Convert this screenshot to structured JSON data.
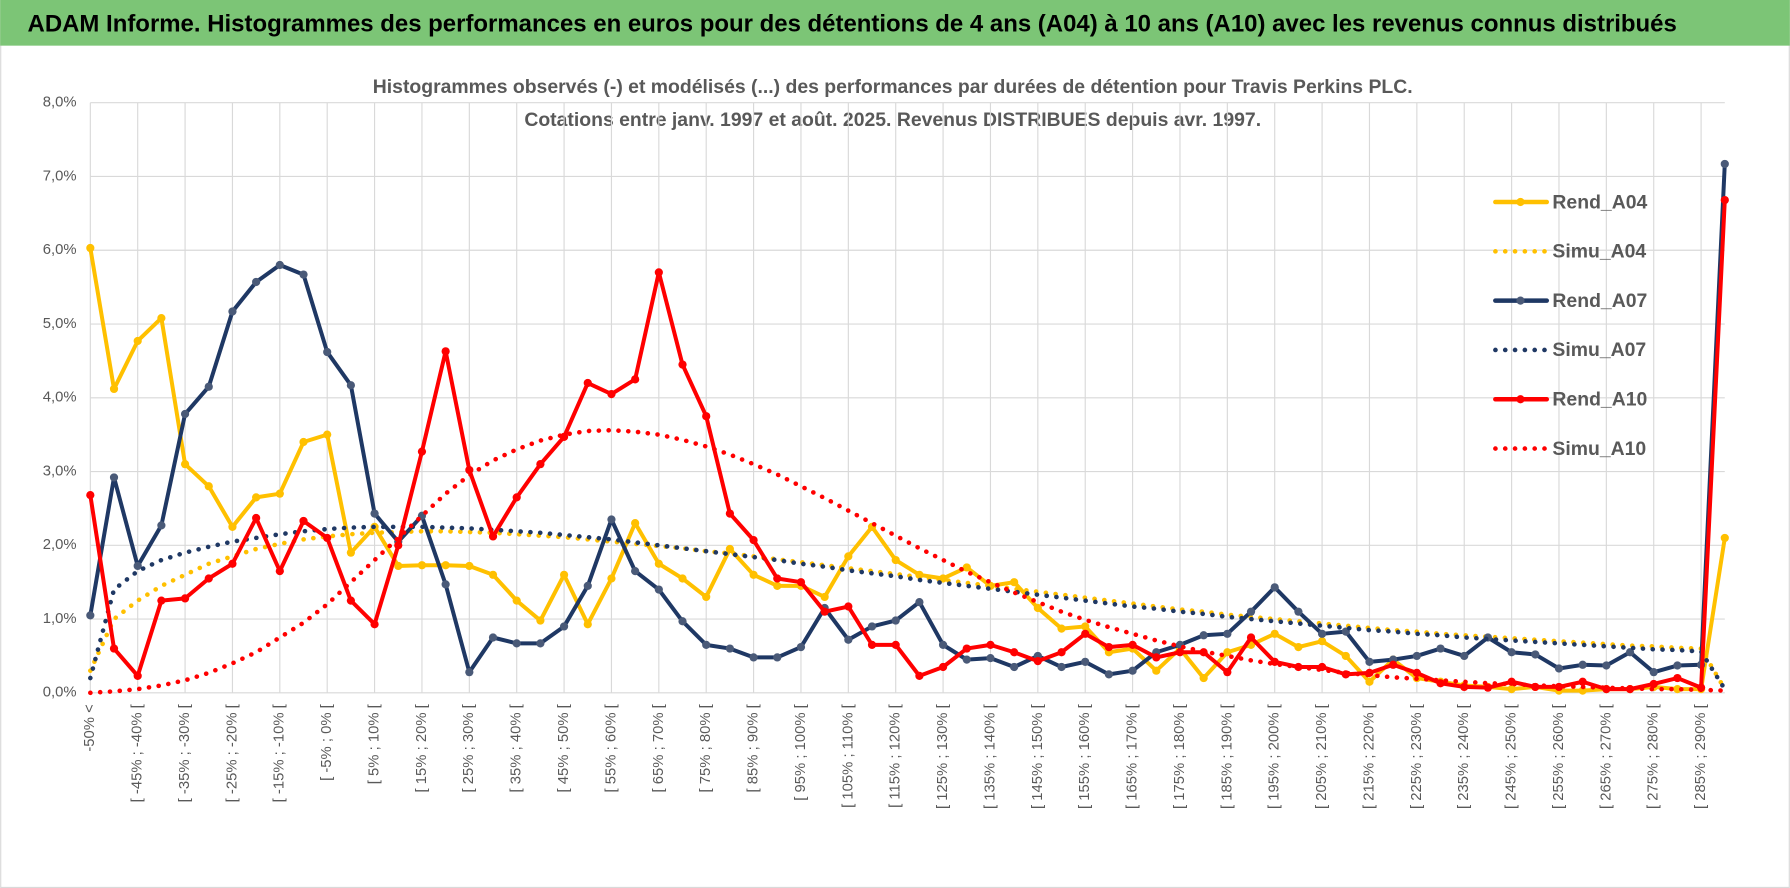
{
  "chart_data": {
    "type": "line",
    "title": "ADAM Informe. Histogrammes des performances en euros pour des détentions de 4 ans (A04) à 10 ans (A10) avec les revenus connus distribués",
    "subtitle": [
      "Histogrammes observés (-) et modélisés (...) des performances par durées de détention pour Travis Perkins PLC.",
      "Cotations entre janv. 1997 et août. 2025. Revenus DISTRIBUES depuis avr. 1997."
    ],
    "categories": [
      "-50% <",
      null,
      "[ -45% ; -40% [",
      null,
      "[ -35% ; -30% [",
      null,
      "[ -25% ; -20% [",
      null,
      "[ -15% ; -10% [",
      null,
      "[ -5% ; 0% [",
      null,
      "[ 5% ; 10% [",
      null,
      "[ 15% ; 20% [",
      null,
      "[ 25% ; 30% [",
      null,
      "[ 35% ; 40% [",
      null,
      "[ 45% ; 50% [",
      null,
      "[ 55% ; 60% [",
      null,
      "[ 65% ; 70% [",
      null,
      "[ 75% ; 80% [",
      null,
      "[ 85% ; 90% [",
      null,
      "[ 95% ; 100% [",
      null,
      "[ 105% ; 110% [",
      null,
      "[ 115% ; 120% [",
      null,
      "[ 125% ; 130% [",
      null,
      "[ 135% ; 140% [",
      null,
      "[ 145% ; 150% [",
      null,
      "[ 155% ; 160% [",
      null,
      "[ 165% ; 170% [",
      null,
      "[ 175% ; 180% [",
      null,
      "[ 185% ; 190% [",
      null,
      "[ 195% ; 200% [",
      null,
      "[ 205% ; 210% [",
      null,
      "[ 215% ; 220% [",
      null,
      "[ 225% ; 230% [",
      null,
      "[ 235% ; 240% [",
      null,
      "[ 245% ; 250% [",
      null,
      "[ 255% ; 260% [",
      null,
      "[ 265% ; 270% [",
      null,
      "[ 275% ; 280% [",
      null,
      "[ 285% ; 290% [",
      null
    ],
    "series": [
      {
        "name": "Rend_A04",
        "color": "#FFC000",
        "style": "solid",
        "markers": true,
        "values": [
          6.03,
          4.12,
          4.77,
          5.08,
          3.1,
          2.8,
          2.25,
          2.65,
          2.7,
          3.4,
          3.5,
          1.9,
          2.25,
          1.72,
          1.73,
          1.73,
          1.72,
          1.6,
          1.25,
          0.98,
          1.6,
          0.93,
          1.55,
          2.3,
          1.75,
          1.55,
          1.3,
          1.95,
          1.6,
          1.45,
          1.45,
          1.3,
          1.85,
          2.25,
          1.8,
          1.6,
          1.55,
          1.7,
          1.45,
          1.5,
          1.15,
          0.87,
          0.9,
          0.55,
          0.6,
          0.3,
          0.6,
          0.2,
          0.55,
          0.65,
          0.8,
          0.62,
          0.7,
          0.5,
          0.15,
          0.45,
          0.2,
          0.15,
          0.1,
          0.08,
          0.05,
          0.08,
          0.03,
          0.03,
          0.05,
          0.05,
          0.08,
          0.05,
          0.05,
          2.1
        ]
      },
      {
        "name": "Simu_A04",
        "color": "#FFC000",
        "style": "dotted",
        "markers": false,
        "values": [
          0.3,
          1.0,
          1.25,
          1.45,
          1.6,
          1.75,
          1.85,
          1.95,
          2.02,
          2.08,
          2.12,
          2.15,
          2.17,
          2.18,
          2.19,
          2.19,
          2.18,
          2.17,
          2.15,
          2.13,
          2.11,
          2.08,
          2.05,
          2.02,
          1.99,
          1.96,
          1.92,
          1.89,
          1.85,
          1.81,
          1.77,
          1.73,
          1.69,
          1.65,
          1.61,
          1.57,
          1.53,
          1.49,
          1.45,
          1.41,
          1.37,
          1.33,
          1.29,
          1.25,
          1.21,
          1.17,
          1.13,
          1.1,
          1.06,
          1.03,
          1.0,
          0.97,
          0.94,
          0.91,
          0.88,
          0.85,
          0.83,
          0.8,
          0.78,
          0.76,
          0.74,
          0.72,
          0.7,
          0.68,
          0.66,
          0.64,
          0.63,
          0.61,
          0.6,
          0.05
        ]
      },
      {
        "name": "Rend_A07",
        "color": "#1F3864",
        "style": "solid",
        "markers": true,
        "values": [
          1.05,
          2.92,
          1.72,
          2.27,
          3.78,
          4.15,
          5.17,
          5.57,
          5.8,
          5.67,
          4.62,
          4.17,
          2.43,
          2.05,
          2.4,
          1.47,
          0.28,
          0.75,
          0.67,
          0.67,
          0.9,
          1.45,
          2.35,
          1.65,
          1.4,
          0.97,
          0.65,
          0.6,
          0.48,
          0.48,
          0.62,
          1.15,
          0.72,
          0.9,
          0.98,
          1.23,
          0.65,
          0.45,
          0.47,
          0.35,
          0.5,
          0.35,
          0.42,
          0.25,
          0.3,
          0.55,
          0.65,
          0.78,
          0.8,
          1.1,
          1.43,
          1.1,
          0.8,
          0.83,
          0.42,
          0.45,
          0.5,
          0.6,
          0.5,
          0.75,
          0.55,
          0.52,
          0.33,
          0.38,
          0.37,
          0.55,
          0.28,
          0.37,
          0.38,
          7.17
        ]
      },
      {
        "name": "Simu_A07",
        "color": "#1F3864",
        "style": "dotted",
        "markers": false,
        "values": [
          0.2,
          1.4,
          1.65,
          1.8,
          1.9,
          1.98,
          2.05,
          2.1,
          2.15,
          2.19,
          2.22,
          2.24,
          2.25,
          2.25,
          2.25,
          2.24,
          2.23,
          2.21,
          2.19,
          2.17,
          2.14,
          2.11,
          2.08,
          2.04,
          2.0,
          1.96,
          1.92,
          1.88,
          1.84,
          1.8,
          1.75,
          1.71,
          1.66,
          1.62,
          1.58,
          1.53,
          1.49,
          1.45,
          1.41,
          1.37,
          1.33,
          1.29,
          1.25,
          1.21,
          1.17,
          1.14,
          1.1,
          1.07,
          1.03,
          1.0,
          0.97,
          0.94,
          0.91,
          0.88,
          0.85,
          0.83,
          0.8,
          0.78,
          0.75,
          0.73,
          0.71,
          0.69,
          0.67,
          0.65,
          0.63,
          0.61,
          0.59,
          0.58,
          0.56,
          0.05
        ]
      },
      {
        "name": "Rend_A10",
        "color": "#FF0000",
        "style": "solid",
        "markers": true,
        "values": [
          2.68,
          0.6,
          0.23,
          1.25,
          1.28,
          1.55,
          1.75,
          2.37,
          1.65,
          2.33,
          2.1,
          1.25,
          0.93,
          2.0,
          3.27,
          4.63,
          3.02,
          2.12,
          2.65,
          3.1,
          3.47,
          4.2,
          4.05,
          4.25,
          5.7,
          4.45,
          3.75,
          2.43,
          2.07,
          1.55,
          1.5,
          1.1,
          1.17,
          0.65,
          0.65,
          0.23,
          0.35,
          0.6,
          0.65,
          0.55,
          0.43,
          0.55,
          0.8,
          0.62,
          0.65,
          0.48,
          0.55,
          0.55,
          0.28,
          0.75,
          0.42,
          0.35,
          0.35,
          0.25,
          0.27,
          0.38,
          0.27,
          0.13,
          0.08,
          0.07,
          0.15,
          0.08,
          0.08,
          0.15,
          0.05,
          0.05,
          0.12,
          0.2,
          0.07,
          6.68
        ]
      },
      {
        "name": "Simu_A10",
        "color": "#FF0000",
        "style": "dotted",
        "markers": false,
        "values": [
          0.0,
          0.02,
          0.05,
          0.1,
          0.17,
          0.27,
          0.4,
          0.55,
          0.75,
          0.95,
          1.2,
          1.5,
          1.8,
          2.1,
          2.4,
          2.7,
          2.95,
          3.15,
          3.3,
          3.42,
          3.5,
          3.55,
          3.56,
          3.54,
          3.5,
          3.43,
          3.34,
          3.23,
          3.1,
          2.96,
          2.8,
          2.64,
          2.47,
          2.3,
          2.13,
          1.96,
          1.8,
          1.64,
          1.5,
          1.36,
          1.23,
          1.1,
          0.99,
          0.89,
          0.8,
          0.71,
          0.63,
          0.56,
          0.5,
          0.44,
          0.39,
          0.35,
          0.31,
          0.27,
          0.24,
          0.21,
          0.19,
          0.17,
          0.15,
          0.13,
          0.12,
          0.1,
          0.09,
          0.08,
          0.07,
          0.06,
          0.05,
          0.05,
          0.04,
          0.03
        ]
      }
    ],
    "ylim": [
      0,
      8
    ],
    "yticks": [
      {
        "value": 0,
        "label": "0,0%"
      },
      {
        "value": 1,
        "label": "1,0%"
      },
      {
        "value": 2,
        "label": "2,0%"
      },
      {
        "value": 3,
        "label": "3,0%"
      },
      {
        "value": 4,
        "label": "4,0%"
      },
      {
        "value": 5,
        "label": "5,0%"
      },
      {
        "value": 6,
        "label": "6,0%"
      },
      {
        "value": 7,
        "label": "7,0%"
      },
      {
        "value": 8,
        "label": "8,0%"
      }
    ],
    "grid": true,
    "legend": "upper right"
  }
}
